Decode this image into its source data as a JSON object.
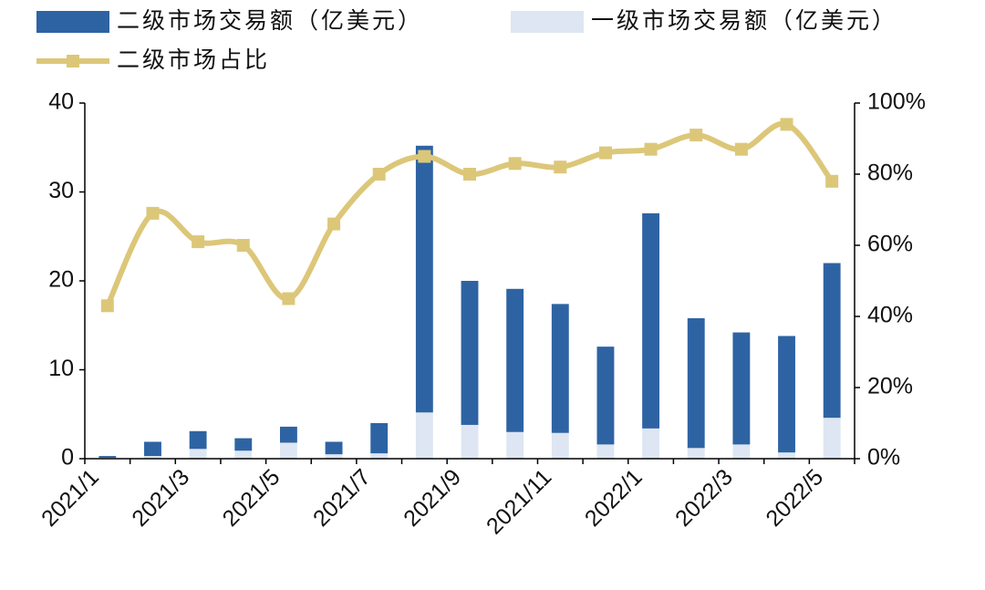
{
  "chart_data": {
    "type": "bar",
    "categories": [
      "2021/1",
      null,
      "2021/3",
      null,
      "2021/5",
      null,
      "2021/7",
      null,
      "2021/9",
      null,
      "2021/11",
      null,
      "2022/1",
      null,
      "2022/3",
      null,
      "2022/5"
    ],
    "series": [
      {
        "name": "二级市场交易额（亿美元）",
        "color": "#2e63a3",
        "type": "bar",
        "values": [
          0.2,
          1.6,
          2.0,
          1.4,
          1.8,
          1.4,
          3.4,
          30.0,
          16.2,
          16.1,
          14.5,
          11.0,
          24.2,
          14.6,
          12.6,
          13.1,
          17.4
        ]
      },
      {
        "name": "一级市场交易额（亿美元）",
        "color": "#dde6f2",
        "type": "bar",
        "values": [
          0.1,
          0.3,
          1.1,
          0.9,
          1.8,
          0.5,
          0.6,
          5.2,
          3.8,
          3.0,
          2.9,
          1.6,
          3.4,
          1.2,
          1.6,
          0.7,
          4.6
        ]
      },
      {
        "name": "二级市场占比",
        "color": "#dcc779",
        "type": "line",
        "axis": "y2",
        "values": [
          43,
          69,
          61,
          60,
          45,
          66,
          80,
          85,
          80,
          83,
          82,
          86,
          87,
          91,
          87,
          94,
          78
        ]
      }
    ],
    "ylim": [
      0,
      40
    ],
    "yticks": [
      0,
      10,
      20,
      30,
      40
    ],
    "y2lim": [
      0,
      100
    ],
    "y2ticks": [
      {
        "value": 0,
        "label": "0%"
      },
      {
        "value": 20,
        "label": "20%"
      },
      {
        "value": 40,
        "label": "40%"
      },
      {
        "value": 60,
        "label": "60%"
      },
      {
        "value": 80,
        "label": "80%"
      },
      {
        "value": 100,
        "label": "100%"
      }
    ]
  }
}
